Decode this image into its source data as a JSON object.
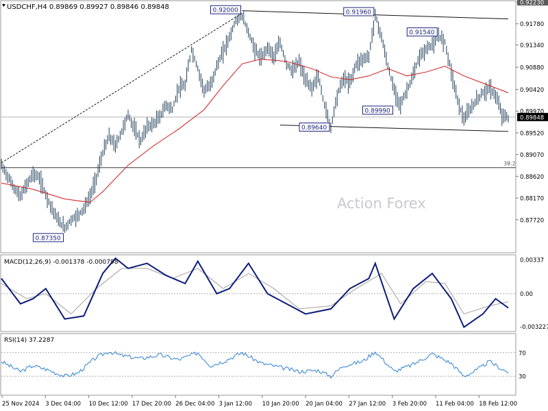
{
  "chart_data": {
    "type": "candlestick",
    "title": "USDCHF,H4  0.89869 0.89927 0.89846 0.89848",
    "watermark": "Action Forex",
    "x_labels": [
      "25 Nov 2024",
      "3 Dec 04:00",
      "10 Dec 12:00",
      "17 Dec 20:00",
      "26 Dec 04:00",
      "3 Jan 12:00",
      "10 Jan 20:00",
      "20 Jan 04:00",
      "27 Jan 12:00",
      "3 Feb 20:00",
      "11 Feb 04:00",
      "18 Feb 12:00"
    ],
    "price_axis": {
      "ticks": [
        "0.92230",
        "0.91780",
        "0.91340",
        "0.90880",
        "0.90420",
        "0.89970",
        "0.89520",
        "0.89070",
        "0.88620",
        "0.88170",
        "0.87720"
      ],
      "range": [
        0.8705,
        0.9223
      ],
      "current_price": "0.89848"
    },
    "price_path": [
      [
        0,
        0.8885
      ],
      [
        2,
        0.8862
      ],
      [
        4,
        0.8838
      ],
      [
        6,
        0.882
      ],
      [
        8,
        0.8845
      ],
      [
        10,
        0.8868
      ],
      [
        12,
        0.8858
      ],
      [
        14,
        0.8825
      ],
      [
        16,
        0.8795
      ],
      [
        18,
        0.877
      ],
      [
        20,
        0.8755
      ],
      [
        22,
        0.8772
      ],
      [
        24,
        0.878
      ],
      [
        26,
        0.8795
      ],
      [
        28,
        0.882
      ],
      [
        30,
        0.886
      ],
      [
        32,
        0.891
      ],
      [
        34,
        0.8945
      ],
      [
        36,
        0.8925
      ],
      [
        38,
        0.8955
      ],
      [
        40,
        0.899
      ],
      [
        42,
        0.896
      ],
      [
        44,
        0.8935
      ],
      [
        46,
        0.8965
      ],
      [
        48,
        0.897
      ],
      [
        50,
        0.8985
      ],
      [
        52,
        0.901
      ],
      [
        54,
        0.9
      ],
      [
        56,
        0.9045
      ],
      [
        58,
        0.905
      ],
      [
        60,
        0.9125
      ],
      [
        62,
        0.9085
      ],
      [
        64,
        0.904
      ],
      [
        66,
        0.905
      ],
      [
        68,
        0.909
      ],
      [
        70,
        0.912
      ],
      [
        72,
        0.915
      ],
      [
        74,
        0.9185
      ],
      [
        76,
        0.9195
      ],
      [
        78,
        0.916
      ],
      [
        80,
        0.9125
      ],
      [
        82,
        0.9105
      ],
      [
        84,
        0.913
      ],
      [
        86,
        0.911
      ],
      [
        88,
        0.9138
      ],
      [
        90,
        0.9095
      ],
      [
        92,
        0.908
      ],
      [
        94,
        0.91
      ],
      [
        96,
        0.906
      ],
      [
        98,
        0.9045
      ],
      [
        100,
        0.907
      ],
      [
        102,
        0.901
      ],
      [
        104,
        0.8964
      ],
      [
        106,
        0.903
      ],
      [
        108,
        0.9065
      ],
      [
        110,
        0.9055
      ],
      [
        112,
        0.9095
      ],
      [
        114,
        0.9105
      ],
      [
        116,
        0.911
      ],
      [
        118,
        0.9196
      ],
      [
        120,
        0.915
      ],
      [
        122,
        0.909
      ],
      [
        124,
        0.904
      ],
      [
        126,
        0.901
      ],
      [
        128,
        0.904
      ],
      [
        130,
        0.907
      ],
      [
        132,
        0.911
      ],
      [
        134,
        0.9125
      ],
      [
        136,
        0.9135
      ],
      [
        138,
        0.9154
      ],
      [
        140,
        0.914
      ],
      [
        142,
        0.908
      ],
      [
        144,
        0.902
      ],
      [
        146,
        0.898
      ],
      [
        148,
        0.9
      ],
      [
        150,
        0.902
      ],
      [
        152,
        0.9035
      ],
      [
        154,
        0.9045
      ],
      [
        156,
        0.903
      ],
      [
        158,
        0.899
      ],
      [
        160,
        0.8982
      ]
    ],
    "ma_path": [
      [
        0,
        0.8848
      ],
      [
        10,
        0.8835
      ],
      [
        20,
        0.8815
      ],
      [
        28,
        0.8808
      ],
      [
        32,
        0.883
      ],
      [
        40,
        0.8885
      ],
      [
        48,
        0.8925
      ],
      [
        56,
        0.896
      ],
      [
        64,
        0.9
      ],
      [
        70,
        0.905
      ],
      [
        76,
        0.9095
      ],
      [
        82,
        0.9105
      ],
      [
        90,
        0.91
      ],
      [
        98,
        0.9085
      ],
      [
        104,
        0.9068
      ],
      [
        110,
        0.9062
      ],
      [
        116,
        0.907
      ],
      [
        122,
        0.9085
      ],
      [
        128,
        0.907
      ],
      [
        134,
        0.9078
      ],
      [
        140,
        0.909
      ],
      [
        146,
        0.907
      ],
      [
        152,
        0.9055
      ],
      [
        158,
        0.904
      ],
      [
        160,
        0.9035
      ]
    ],
    "bar_range": [
      0,
      160
    ],
    "fib_level": {
      "label": "38.2",
      "value": 0.888
    },
    "trendlines": [
      {
        "style": "dashed",
        "from": [
          0,
          0.889
        ],
        "to": [
          76,
          0.92
        ]
      },
      {
        "style": "solid",
        "from": [
          76,
          0.9205
        ],
        "to": [
          160,
          0.9188
        ]
      },
      {
        "style": "solid",
        "from": [
          88,
          0.8968
        ],
        "to": [
          160,
          0.8955
        ]
      }
    ],
    "annotations": [
      {
        "label": "0.92000",
        "bar": 76,
        "price": 0.92
      },
      {
        "label": "0.91960",
        "bar": 118,
        "price": 0.9196
      },
      {
        "label": "0.91540",
        "bar": 138,
        "price": 0.9154
      },
      {
        "label": "0.89990",
        "bar": 124,
        "price": 0.8999
      },
      {
        "label": "0.89640",
        "bar": 104,
        "price": 0.8964
      },
      {
        "label": "0.87350",
        "bar": 20,
        "price": 0.8735
      }
    ],
    "macd": {
      "title": "MACD(12,26,9) -0.001378 -0.000798",
      "ticks": [
        "0.00337",
        "0.00",
        "-0.003227"
      ],
      "range": [
        -0.0036,
        0.0037
      ],
      "macd_path": [
        [
          0,
          0.0015
        ],
        [
          6,
          -0.001
        ],
        [
          10,
          -0.0005
        ],
        [
          14,
          0.0005
        ],
        [
          20,
          -0.0025
        ],
        [
          26,
          -0.0022
        ],
        [
          32,
          0.002
        ],
        [
          36,
          0.0035
        ],
        [
          40,
          0.0025
        ],
        [
          46,
          0.003
        ],
        [
          52,
          0.0018
        ],
        [
          58,
          0.001
        ],
        [
          62,
          0.0032
        ],
        [
          68,
          0.0
        ],
        [
          72,
          0.0005
        ],
        [
          78,
          0.003
        ],
        [
          84,
          0.0
        ],
        [
          90,
          -0.001
        ],
        [
          96,
          -0.002
        ],
        [
          104,
          -0.0015
        ],
        [
          110,
          0.0005
        ],
        [
          116,
          0.0015
        ],
        [
          118,
          0.003
        ],
        [
          124,
          -0.0025
        ],
        [
          130,
          0.0005
        ],
        [
          136,
          0.002
        ],
        [
          142,
          -0.0005
        ],
        [
          146,
          -0.0033
        ],
        [
          152,
          -0.002
        ],
        [
          156,
          -0.0005
        ],
        [
          160,
          -0.0014
        ]
      ],
      "signal_path": [
        [
          0,
          0.001
        ],
        [
          8,
          -0.0005
        ],
        [
          14,
          0.0
        ],
        [
          22,
          -0.002
        ],
        [
          30,
          0.0005
        ],
        [
          38,
          0.0025
        ],
        [
          46,
          0.0025
        ],
        [
          54,
          0.0015
        ],
        [
          62,
          0.0025
        ],
        [
          70,
          0.0005
        ],
        [
          78,
          0.002
        ],
        [
          86,
          0.0005
        ],
        [
          94,
          -0.0015
        ],
        [
          104,
          -0.0012
        ],
        [
          112,
          0.0005
        ],
        [
          120,
          0.002
        ],
        [
          126,
          -0.001
        ],
        [
          134,
          0.0012
        ],
        [
          140,
          0.001
        ],
        [
          146,
          -0.002
        ],
        [
          154,
          -0.0012
        ],
        [
          160,
          -0.0008
        ]
      ]
    },
    "rsi": {
      "title": "RSI(14) 37.2287",
      "ticks": [
        "70",
        "30"
      ],
      "range": [
        0,
        100
      ],
      "levels": [
        70,
        30
      ],
      "path": [
        [
          0,
          55
        ],
        [
          6,
          38
        ],
        [
          10,
          48
        ],
        [
          14,
          42
        ],
        [
          20,
          30
        ],
        [
          24,
          35
        ],
        [
          30,
          62
        ],
        [
          34,
          72
        ],
        [
          38,
          65
        ],
        [
          44,
          60
        ],
        [
          50,
          66
        ],
        [
          56,
          58
        ],
        [
          62,
          70
        ],
        [
          66,
          48
        ],
        [
          70,
          55
        ],
        [
          76,
          70
        ],
        [
          82,
          52
        ],
        [
          88,
          45
        ],
        [
          94,
          38
        ],
        [
          100,
          40
        ],
        [
          104,
          30
        ],
        [
          108,
          48
        ],
        [
          114,
          55
        ],
        [
          118,
          72
        ],
        [
          124,
          38
        ],
        [
          130,
          50
        ],
        [
          136,
          68
        ],
        [
          142,
          52
        ],
        [
          146,
          30
        ],
        [
          150,
          40
        ],
        [
          154,
          55
        ],
        [
          158,
          42
        ],
        [
          160,
          37
        ]
      ]
    }
  }
}
